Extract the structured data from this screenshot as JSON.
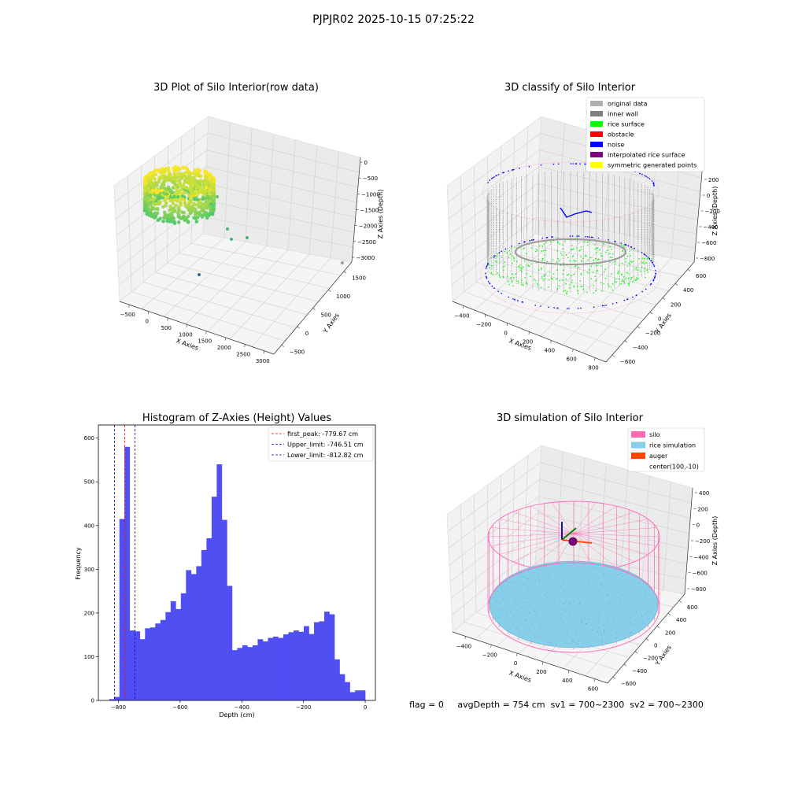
{
  "suptitle": "PJPJR02 2025-10-15 07:25:22",
  "footer": {
    "flag": "flag = 0",
    "avg_depth": "avgDepth = 754 cm",
    "sv1": "sv1 = 700~2300",
    "sv2": "sv2 = 700~2300"
  },
  "colors": {
    "hist_bar": "#4f4ff2",
    "first_peak": "#ff0000",
    "limits": "#0000cc",
    "silo": "#ff69b4",
    "rice_simulation": "#87ceeb",
    "auger": "#ff4500",
    "inner_wall": "#808080",
    "rice_surface": "#00ff00",
    "obstacle": "#ff0000",
    "noise": "#0000ff",
    "interpolated": "#800080",
    "symmetric": "#ffff00",
    "original": "#b0b0b0"
  },
  "chart_data": [
    {
      "type": "scatter",
      "title": "3D Plot of Silo Interior(row data)",
      "xlabel": "X Axies",
      "ylabel": "Y Axies",
      "zlabel": "Z Axies (Depth)",
      "x_ticks": [
        "−500",
        "0",
        "500",
        "1000",
        "1500",
        "2000",
        "2500",
        "3000"
      ],
      "y_ticks": [
        "−500",
        "0",
        "500",
        "1000",
        "1500"
      ],
      "z_ticks": [
        "0",
        "−500",
        "−1000",
        "−1500",
        "−2000",
        "−2500",
        "−3000"
      ],
      "colormap": "viridis"
    },
    {
      "type": "scatter",
      "title": "3D classify of Silo Interior",
      "xlabel": "X Axies",
      "ylabel": "Y Axies",
      "zlabel": "Z Axies (Depth)",
      "x_ticks": [
        "−400",
        "−200",
        "0",
        "200",
        "400",
        "600",
        "800"
      ],
      "y_ticks": [
        "−600",
        "−400",
        "−200",
        "0",
        "200",
        "400",
        "600"
      ],
      "z_ticks": [
        "200",
        "0",
        "−200",
        "−400",
        "−600",
        "−800"
      ],
      "legend": [
        "original data",
        "inner wall",
        "rice surface",
        "obstacle",
        "noise",
        "interpolated rice surface",
        "symmetric generated points"
      ],
      "legend_placement": "top-right"
    },
    {
      "type": "bar",
      "title": "Histogram of Z-Axies (Height) Values",
      "xlabel": "Depth (cm)",
      "ylabel": "Frequency",
      "xlim": [
        -865,
        33
      ],
      "ylim": [
        0,
        630
      ],
      "x_ticks": [
        -800,
        -600,
        -400,
        -200,
        0
      ],
      "x_tick_labels": [
        "−800",
        "−600",
        "−400",
        "−200",
        "0"
      ],
      "y_ticks": [
        0,
        100,
        200,
        300,
        400,
        500,
        600
      ],
      "bin_start": -830,
      "bin_width": 16.6,
      "values": [
        3,
        8,
        415,
        580,
        160,
        158,
        140,
        165,
        167,
        176,
        184,
        202,
        227,
        209,
        245,
        298,
        289,
        307,
        344,
        371,
        466,
        540,
        413,
        262,
        115,
        120,
        126,
        122,
        126,
        140,
        135,
        143,
        146,
        143,
        151,
        156,
        160,
        157,
        170,
        152,
        179,
        181,
        203,
        197,
        94,
        60,
        42,
        19,
        23,
        23
      ],
      "lines": [
        {
          "name": "first_peak: -779.67 cm",
          "x": -779.67,
          "color": "#ff0000"
        },
        {
          "name": "Upper_limit: -746.51 cm",
          "x": -746.51,
          "color": "#0000cc"
        },
        {
          "name": "Lower_limit: -812.82 cm",
          "x": -812.82,
          "color": "#0000cc"
        }
      ],
      "legend_placement": "top-right"
    },
    {
      "type": "scatter",
      "title": "3D simulation of Silo Interior",
      "xlabel": "X Axies",
      "ylabel": "Y Axies",
      "zlabel": "Z Axies (Depth)",
      "x_ticks": [
        "−400",
        "−200",
        "0",
        "200",
        "400",
        "600"
      ],
      "y_ticks": [
        "−600",
        "−400",
        "−200",
        "0",
        "200",
        "400",
        "600"
      ],
      "z_ticks": [
        "400",
        "200",
        "0",
        "−200",
        "−400",
        "−600",
        "−800"
      ],
      "legend": [
        "silo",
        "rice simulation",
        "auger",
        "center(100,-10)"
      ],
      "legend_placement": "top-right"
    }
  ]
}
